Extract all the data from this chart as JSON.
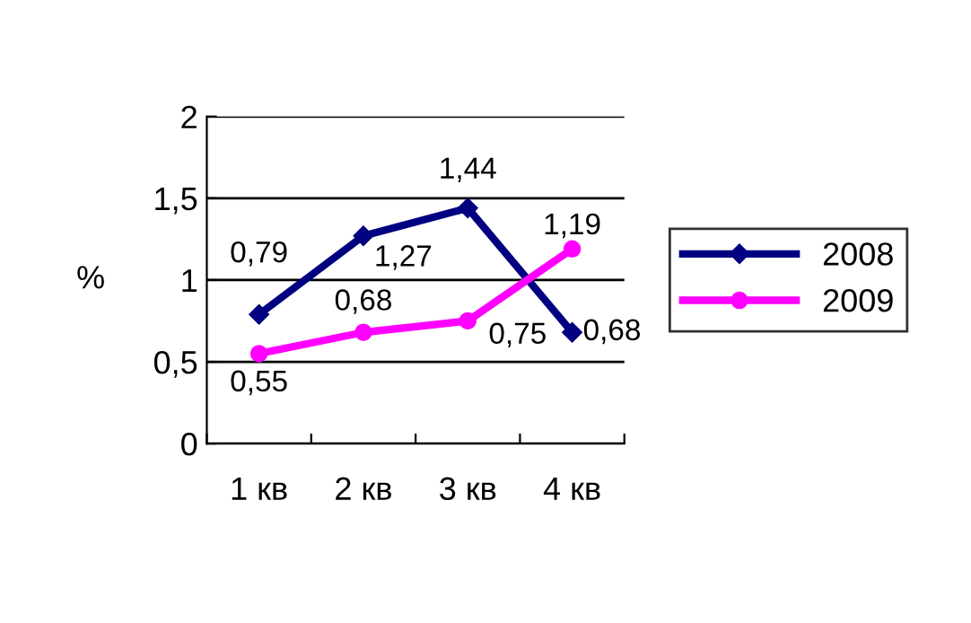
{
  "chart_data": {
    "type": "line",
    "ylabel": "%",
    "categories": [
      "1 кв",
      "2 кв",
      "3 кв",
      "4 кв"
    ],
    "series": [
      {
        "name": "2008",
        "color": "#000080",
        "marker": "diamond",
        "values": [
          0.79,
          1.27,
          1.44,
          0.68
        ],
        "value_labels": [
          "0,79",
          "1,27",
          "1,44",
          "0,68"
        ]
      },
      {
        "name": "2009",
        "color": "#ff00ff",
        "marker": "circle",
        "values": [
          0.55,
          0.68,
          0.75,
          1.19
        ],
        "value_labels": [
          "0,55",
          "0,68",
          "0,75",
          "1,19"
        ]
      }
    ],
    "ylim": [
      0,
      2
    ],
    "yticks": [
      0,
      {
        "value": 0.5,
        "label": "0,5"
      },
      1,
      {
        "value": 1.5,
        "label": "1,5"
      },
      2
    ],
    "grid": "y",
    "legend": "right"
  }
}
